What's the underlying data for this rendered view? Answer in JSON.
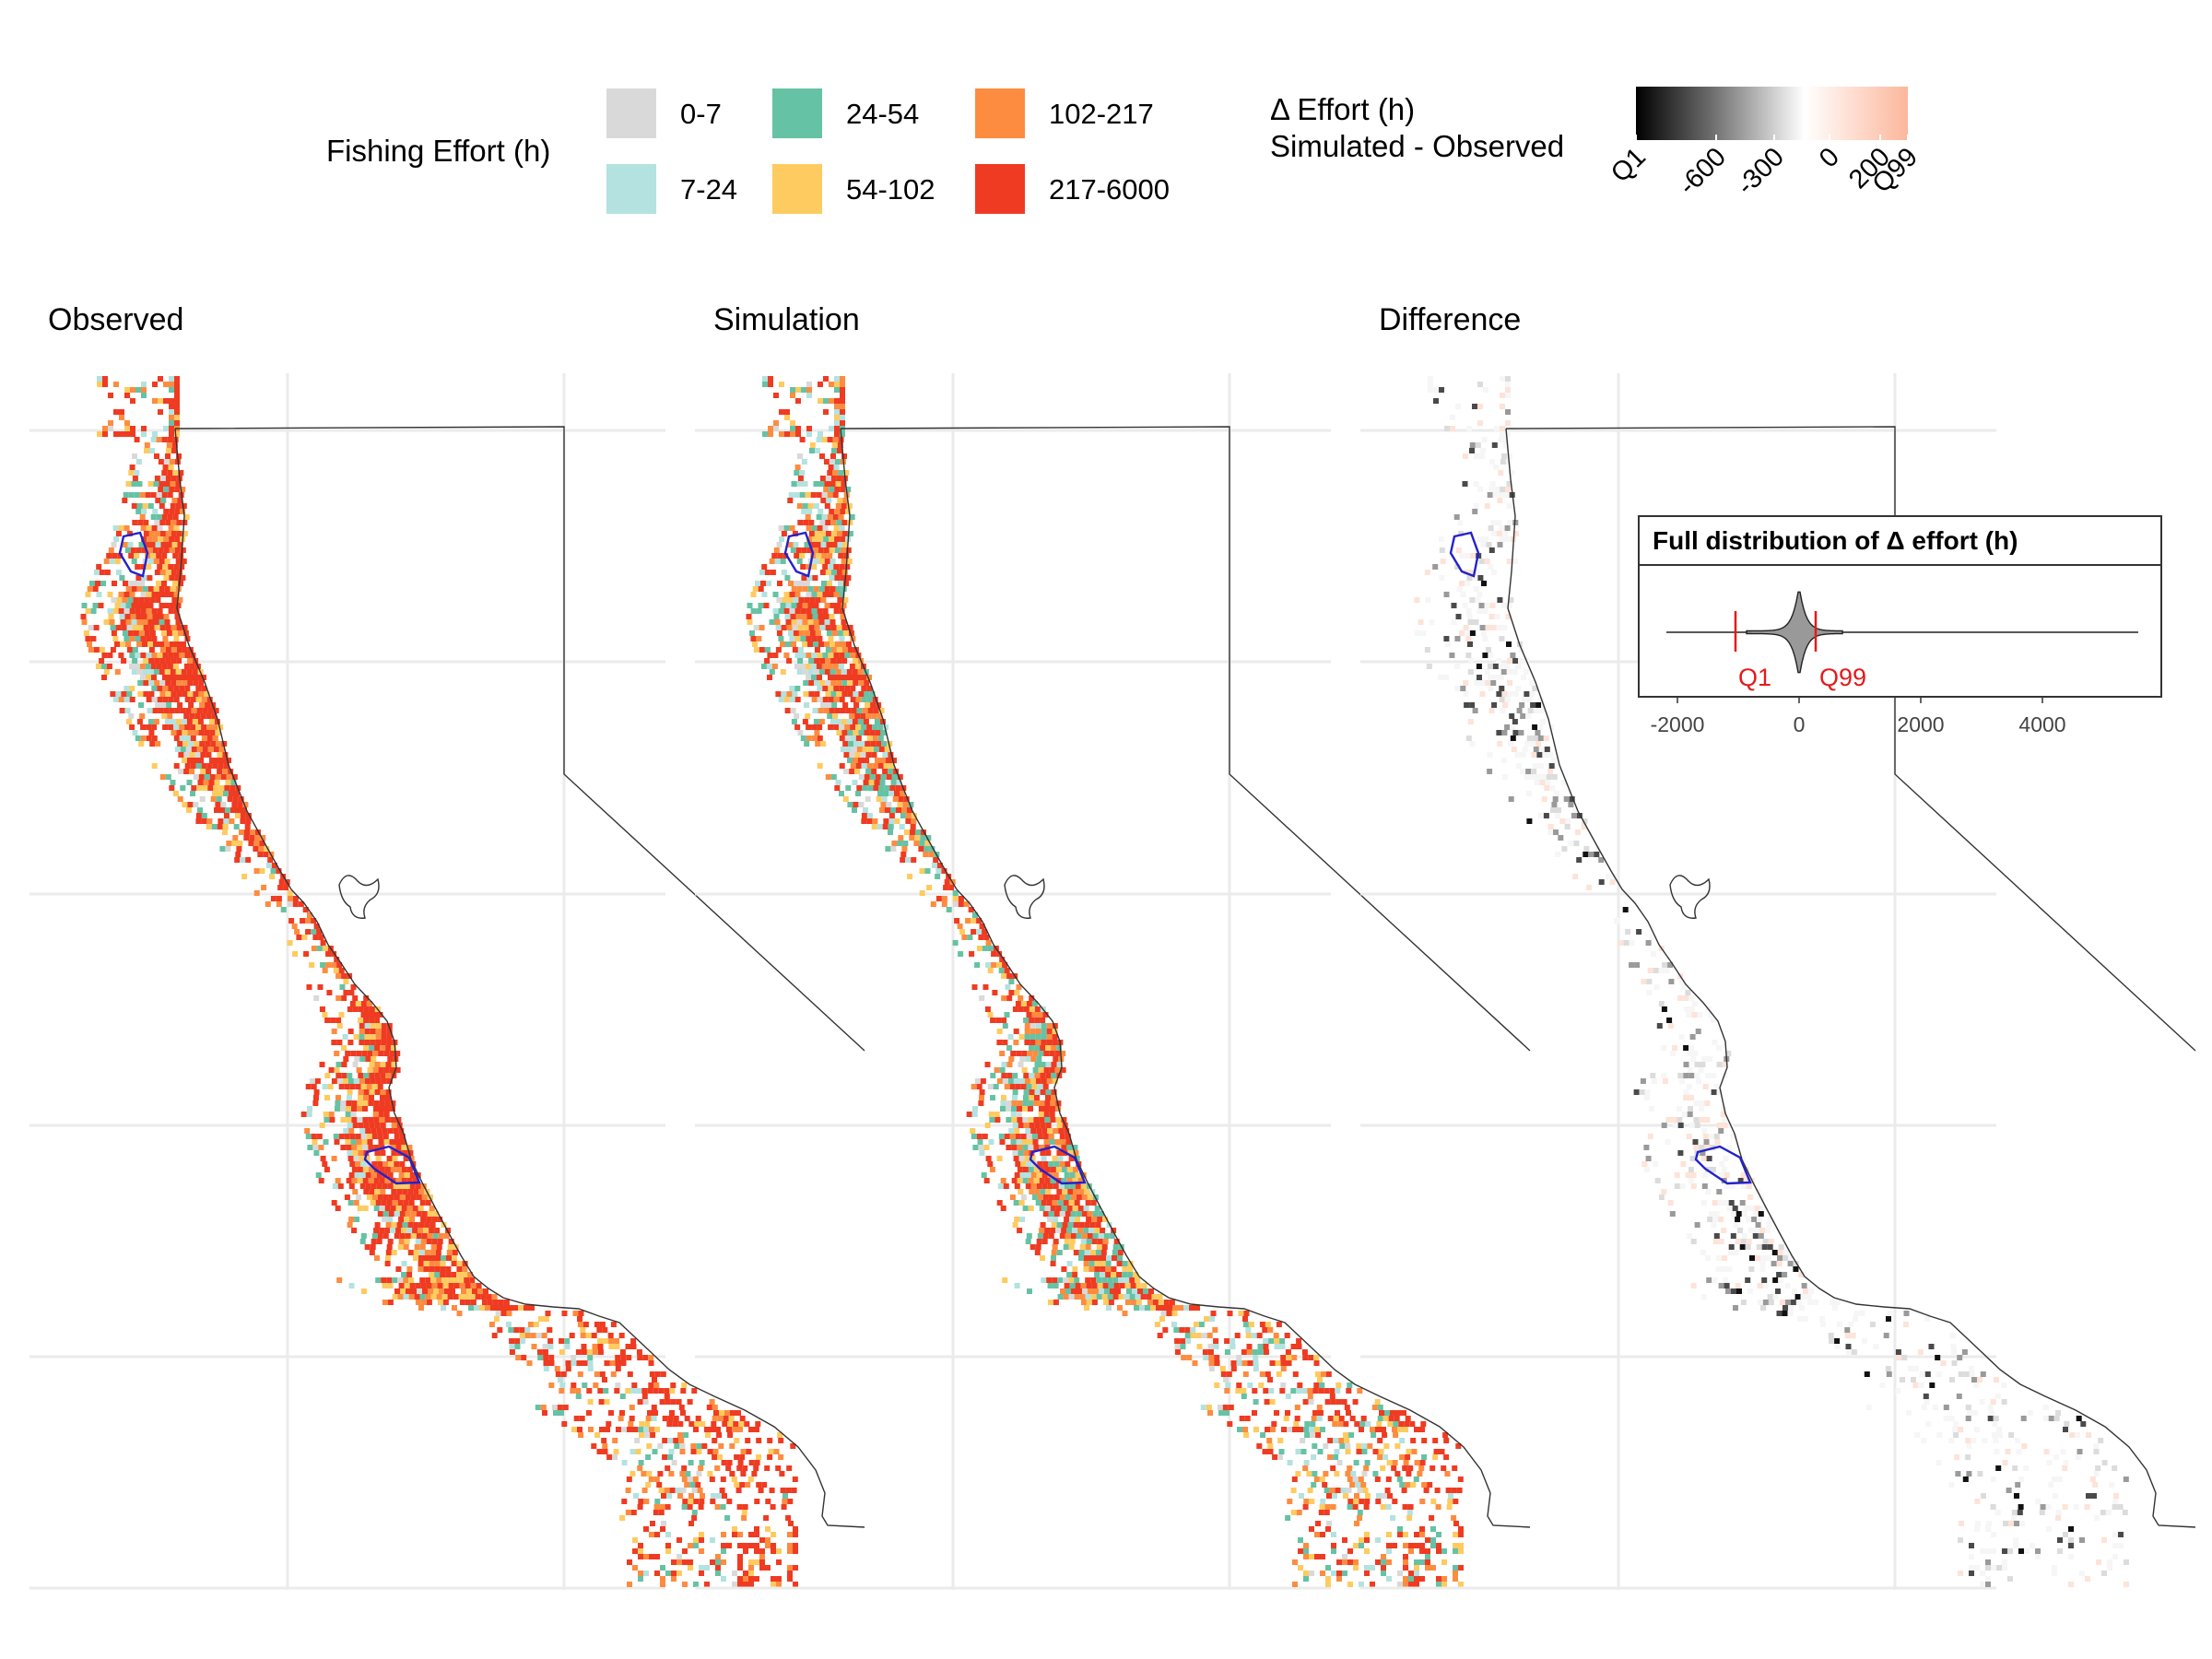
{
  "legend": {
    "title": "Fishing Effort (h)",
    "bins": [
      {
        "label": "0-7",
        "color": "#d9d9d9"
      },
      {
        "label": "7-24",
        "color": "#b3e2e0"
      },
      {
        "label": "24-54",
        "color": "#66c2a4"
      },
      {
        "label": "54-102",
        "color": "#fecb60"
      },
      {
        "label": "102-217",
        "color": "#fd8c40"
      },
      {
        "label": "217-6000",
        "color": "#ef3b22"
      }
    ]
  },
  "diff_legend": {
    "title_line1": "Δ Effort (h)",
    "title_line2": "Simulated - Observed",
    "ticks": [
      "Q1",
      "-600",
      "-300",
      "0",
      "200",
      "Q99"
    ],
    "colors": [
      "#000000",
      "#ffffff",
      "#fcbba1"
    ]
  },
  "panels": [
    {
      "title": "Observed"
    },
    {
      "title": "Simulation"
    },
    {
      "title": "Difference"
    }
  ],
  "inset": {
    "title": "Full distribution of Δ effort (h)",
    "ticks": [
      "-2000",
      "0",
      "2000",
      "4000"
    ],
    "q1_label": "Q1",
    "q99_label": "Q99",
    "q_color": "#e41a1c"
  },
  "colors": {
    "mpa_outline": "#2222cc",
    "coast": "#333333",
    "grid": "#ebebeb"
  }
}
